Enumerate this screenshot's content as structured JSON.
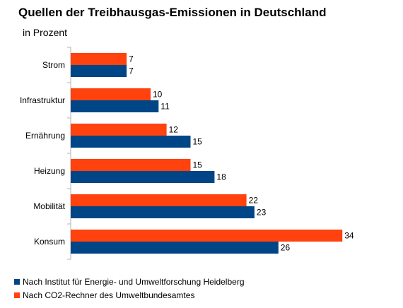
{
  "chart_data": {
    "type": "bar",
    "orientation": "horizontal",
    "title": "Quellen der Treibhausgas-Emissionen in Deutschland",
    "subtitle": "in Prozent",
    "categories": [
      "Strom",
      "Infrastruktur",
      "Ernährung",
      "Heizung",
      "Mobilität",
      "Konsum"
    ],
    "series": [
      {
        "name": "Nach CO2-Rechner des Umweltbundesamtes",
        "color": "#ff420e",
        "values": [
          7,
          10,
          12,
          15,
          22,
          34
        ]
      },
      {
        "name": "Nach Institut für Energie- und Umweltforschung Heidelberg",
        "color": "#004586",
        "values": [
          7,
          11,
          15,
          18,
          23,
          26
        ]
      }
    ],
    "legend_position": "bottom-left",
    "grid": false
  }
}
